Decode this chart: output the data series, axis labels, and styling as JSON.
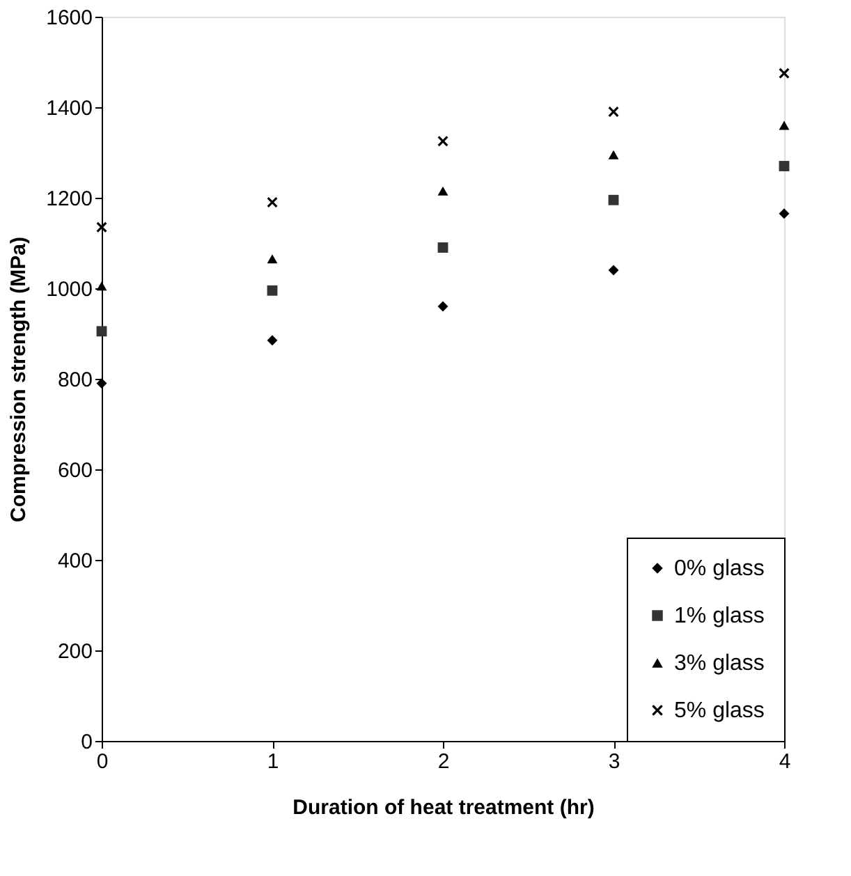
{
  "chart_data": {
    "type": "scatter",
    "xlabel": "Duration of heat treatment (hr)",
    "ylabel": "Compression strength (MPa)",
    "x": [
      0,
      1,
      2,
      3,
      4
    ],
    "series": [
      {
        "name": "0% glass",
        "color": "#000000",
        "marker": "diamond",
        "values": [
          790,
          885,
          960,
          1040,
          1165
        ]
      },
      {
        "name": "1% glass",
        "color": "#333333",
        "marker": "square",
        "values": [
          905,
          995,
          1090,
          1195,
          1270
        ]
      },
      {
        "name": "3% glass",
        "color": "#000000",
        "marker": "triangle",
        "values": [
          1005,
          1065,
          1215,
          1295,
          1360
        ]
      },
      {
        "name": "5% glass",
        "color": "#000000",
        "marker": "cross",
        "values": [
          1135,
          1190,
          1325,
          1390,
          1475
        ]
      }
    ],
    "xlim": [
      0,
      4
    ],
    "xticks": [
      0,
      1,
      2,
      3,
      4
    ],
    "ylim": [
      0,
      1600
    ],
    "yticks": [
      0,
      200,
      400,
      600,
      800,
      1000,
      1200,
      1400,
      1600
    ],
    "grid": false,
    "legend": "bottom right"
  }
}
